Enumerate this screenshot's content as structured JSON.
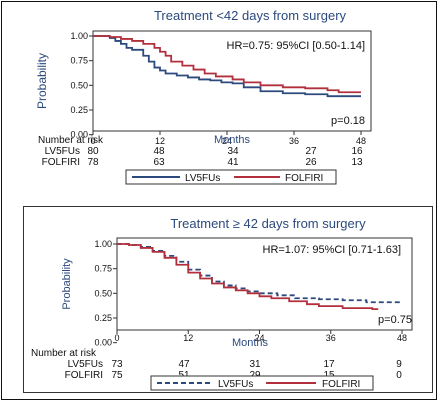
{
  "chart_data": [
    {
      "type": "line",
      "title": "Treatment <42 days from surgery",
      "xlabel": "Months",
      "ylabel": "Probability",
      "xlim": [
        0,
        48
      ],
      "ylim": [
        0,
        1
      ],
      "xticks": [
        "0",
        "12",
        "24",
        "36",
        "48"
      ],
      "yticks": [
        "0.00",
        "0.25",
        "0.50",
        "0.75",
        "1.00"
      ],
      "hr_text": "HR=0.75: 95%CI [0.50-1.14]",
      "p_text": "p=0.18",
      "series": [
        {
          "name": "LV5FUs",
          "color": "#2c4a7d",
          "dash": false,
          "points": [
            [
              0,
              1.0
            ],
            [
              3,
              0.98
            ],
            [
              4,
              0.95
            ],
            [
              5,
              0.92
            ],
            [
              6,
              0.88
            ],
            [
              7,
              0.86
            ],
            [
              9,
              0.8
            ],
            [
              10,
              0.74
            ],
            [
              11,
              0.68
            ],
            [
              12,
              0.65
            ],
            [
              13,
              0.62
            ],
            [
              15,
              0.6
            ],
            [
              17,
              0.58
            ],
            [
              19,
              0.56
            ],
            [
              21,
              0.55
            ],
            [
              23,
              0.53
            ],
            [
              25,
              0.52
            ],
            [
              27,
              0.48
            ],
            [
              30,
              0.44
            ],
            [
              34,
              0.42
            ],
            [
              38,
              0.41
            ],
            [
              42,
              0.39
            ],
            [
              48,
              0.39
            ]
          ]
        },
        {
          "name": "FOLFIRI",
          "color": "#b2303d",
          "dash": false,
          "points": [
            [
              0,
              1.0
            ],
            [
              3,
              0.99
            ],
            [
              5,
              0.97
            ],
            [
              7,
              0.95
            ],
            [
              9,
              0.92
            ],
            [
              11,
              0.88
            ],
            [
              12,
              0.84
            ],
            [
              13,
              0.8
            ],
            [
              14,
              0.74
            ],
            [
              16,
              0.7
            ],
            [
              18,
              0.66
            ],
            [
              20,
              0.62
            ],
            [
              22,
              0.59
            ],
            [
              25,
              0.56
            ],
            [
              27,
              0.53
            ],
            [
              30,
              0.5
            ],
            [
              34,
              0.48
            ],
            [
              38,
              0.47
            ],
            [
              42,
              0.45
            ],
            [
              44,
              0.43
            ],
            [
              48,
              0.43
            ]
          ]
        }
      ],
      "risk_table": {
        "header": "Number at risk",
        "rows": [
          {
            "label": "LV5FUs",
            "values": [
              "80",
              "48",
              "34",
              "27",
              "16"
            ]
          },
          {
            "label": "FOLFIRI",
            "values": [
              "78",
              "63",
              "41",
              "26",
              "13"
            ]
          }
        ]
      },
      "legend": [
        "LV5FUs",
        "FOLFIRI"
      ]
    },
    {
      "type": "line",
      "title": "Treatment ≥ 42 days from surgery",
      "xlabel": "Months",
      "ylabel": "Probability",
      "xlim": [
        0,
        48
      ],
      "ylim": [
        0,
        1
      ],
      "xticks": [
        "0",
        "12",
        "24",
        "36",
        "48"
      ],
      "yticks": [
        "0.00",
        "0.25",
        "0.50",
        "0.75",
        "1.00"
      ],
      "hr_text": "HR=1.07: 95%CI [0.71-1.63]",
      "p_text": "p=0.75",
      "series": [
        {
          "name": "LV5FUs",
          "color": "#2c4a7d",
          "dash": true,
          "points": [
            [
              0,
              1.0
            ],
            [
              2,
              0.99
            ],
            [
              4,
              0.97
            ],
            [
              6,
              0.93
            ],
            [
              8,
              0.88
            ],
            [
              10,
              0.82
            ],
            [
              12,
              0.74
            ],
            [
              14,
              0.68
            ],
            [
              16,
              0.62
            ],
            [
              18,
              0.58
            ],
            [
              20,
              0.55
            ],
            [
              22,
              0.52
            ],
            [
              24,
              0.5
            ],
            [
              27,
              0.48
            ],
            [
              30,
              0.45
            ],
            [
              34,
              0.44
            ],
            [
              38,
              0.43
            ],
            [
              42,
              0.41
            ],
            [
              48,
              0.41
            ]
          ]
        },
        {
          "name": "FOLFIRI",
          "color": "#b2303d",
          "dash": false,
          "points": [
            [
              0,
              1.0
            ],
            [
              2,
              0.99
            ],
            [
              4,
              0.96
            ],
            [
              6,
              0.92
            ],
            [
              8,
              0.86
            ],
            [
              10,
              0.79
            ],
            [
              12,
              0.71
            ],
            [
              14,
              0.65
            ],
            [
              16,
              0.6
            ],
            [
              18,
              0.56
            ],
            [
              20,
              0.53
            ],
            [
              22,
              0.5
            ],
            [
              24,
              0.47
            ],
            [
              26,
              0.45
            ],
            [
              29,
              0.42
            ],
            [
              32,
              0.39
            ],
            [
              34,
              0.37
            ],
            [
              38,
              0.35
            ],
            [
              43,
              0.34
            ],
            [
              44,
              0.34
            ]
          ]
        }
      ],
      "risk_table": {
        "header": "Number at risk",
        "rows": [
          {
            "label": "LV5FUs",
            "values": [
              "73",
              "47",
              "31",
              "17",
              "9"
            ]
          },
          {
            "label": "FOLFIRI",
            "values": [
              "75",
              "51",
              "29",
              "15",
              "0"
            ]
          }
        ]
      },
      "legend": [
        "LV5FUs",
        "FOLFIRI"
      ]
    }
  ]
}
